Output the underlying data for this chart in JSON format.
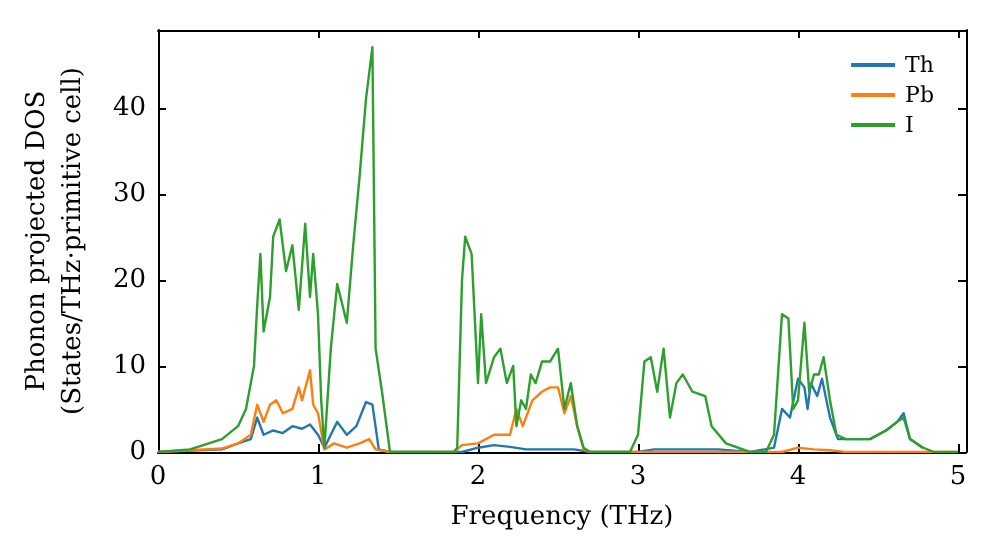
{
  "chart_data": {
    "type": "line",
    "xlabel": "Frequency (THz)",
    "ylabel": "Phonon projected DOS\n(States/THz·primitive cell)",
    "xlim": [
      0,
      5.05
    ],
    "ylim": [
      0,
      49
    ],
    "xticks": [
      0,
      1,
      2,
      3,
      4,
      5
    ],
    "yticks": [
      0,
      10,
      20,
      30,
      40
    ],
    "grid": false,
    "legend": "top right",
    "marker": "none",
    "line_style": "solid",
    "series": [
      {
        "name": "Th",
        "color": "#1f77b4",
        "x": [
          0,
          0.4,
          0.5,
          0.58,
          0.62,
          0.66,
          0.72,
          0.78,
          0.84,
          0.9,
          0.95,
          1.0,
          1.04,
          1.08,
          1.12,
          1.18,
          1.24,
          1.3,
          1.34,
          1.38,
          1.45,
          1.9,
          2.0,
          2.1,
          2.2,
          2.3,
          2.6,
          2.7,
          3.0,
          3.1,
          3.5,
          3.7,
          3.85,
          3.9,
          3.95,
          4.0,
          4.04,
          4.06,
          4.08,
          4.12,
          4.15,
          4.2,
          4.25,
          4.3,
          4.45,
          4.55,
          4.62,
          4.66,
          4.7,
          4.78
        ],
        "values": [
          0,
          0.3,
          1,
          1.5,
          4,
          2,
          2.5,
          2.2,
          3,
          2.7,
          3.2,
          2,
          0.5,
          2,
          3.5,
          2,
          3,
          5.8,
          5.5,
          0.3,
          0,
          0,
          0.5,
          0.8,
          0.6,
          0.3,
          0.3,
          0,
          0,
          0.3,
          0.3,
          0,
          0.5,
          5,
          4,
          8.5,
          7.5,
          5,
          8,
          6.5,
          8.5,
          4,
          1.5,
          1.5,
          1.5,
          2.5,
          3.5,
          4.5,
          1.5,
          0.5
        ]
      },
      {
        "name": "Pb",
        "color": "#ff7f0e",
        "x": [
          0,
          0.4,
          0.5,
          0.58,
          0.62,
          0.66,
          0.7,
          0.74,
          0.78,
          0.84,
          0.88,
          0.9,
          0.95,
          0.97,
          1.0,
          1.04,
          1.1,
          1.18,
          1.26,
          1.32,
          1.36,
          1.45,
          1.85,
          1.9,
          2.0,
          2.1,
          2.2,
          2.24,
          2.28,
          2.34,
          2.4,
          2.45,
          2.5,
          2.54,
          2.58,
          2.62,
          2.66,
          2.7,
          3.9,
          4.0,
          4.1,
          4.2,
          4.3,
          5.0
        ],
        "values": [
          0,
          0.4,
          1,
          2,
          5.5,
          3.5,
          5.5,
          6,
          4.5,
          5,
          7.5,
          6,
          9.5,
          5.5,
          4.5,
          0.3,
          1,
          0.5,
          1,
          1.5,
          0.3,
          0,
          0,
          0.8,
          1,
          2,
          2,
          5,
          3,
          6,
          7,
          7.5,
          7.5,
          4.5,
          6.5,
          3,
          0.3,
          0,
          0,
          0.5,
          0.3,
          0.2,
          0,
          0
        ]
      },
      {
        "name": "I",
        "color": "#2ca02c",
        "x": [
          0,
          0.2,
          0.4,
          0.5,
          0.55,
          0.6,
          0.62,
          0.64,
          0.66,
          0.7,
          0.72,
          0.76,
          0.8,
          0.84,
          0.88,
          0.92,
          0.95,
          0.97,
          1.0,
          1.02,
          1.04,
          1.08,
          1.12,
          1.18,
          1.22,
          1.26,
          1.3,
          1.34,
          1.36,
          1.4,
          1.45,
          1.85,
          1.87,
          1.9,
          1.92,
          1.96,
          2.0,
          2.02,
          2.05,
          2.1,
          2.14,
          2.18,
          2.22,
          2.24,
          2.27,
          2.3,
          2.33,
          2.36,
          2.4,
          2.45,
          2.5,
          2.54,
          2.58,
          2.62,
          2.66,
          2.7,
          2.95,
          3.0,
          3.04,
          3.08,
          3.12,
          3.16,
          3.2,
          3.24,
          3.28,
          3.34,
          3.42,
          3.46,
          3.55,
          3.7,
          3.8,
          3.85,
          3.9,
          3.94,
          3.97,
          4.0,
          4.04,
          4.07,
          4.1,
          4.13,
          4.16,
          4.2,
          4.24,
          4.3,
          4.35,
          4.45,
          4.55,
          4.62,
          4.66,
          4.7,
          4.78,
          4.85,
          5.0
        ],
        "values": [
          0,
          0.3,
          1.5,
          3,
          5,
          10,
          17,
          23,
          14,
          18,
          25,
          27,
          21,
          24,
          16.5,
          26.5,
          18,
          23,
          16,
          6,
          0.5,
          12,
          19.5,
          15,
          24,
          32,
          41,
          47,
          12,
          7,
          0,
          0,
          0.5,
          20,
          25,
          23,
          8,
          16,
          8,
          11,
          12,
          8,
          10,
          3,
          6,
          5,
          9,
          8,
          10.5,
          10.5,
          12,
          5,
          8,
          3,
          0.5,
          0,
          0,
          2,
          10.5,
          11,
          7,
          12,
          4,
          8,
          9,
          7,
          6.5,
          3,
          1,
          0,
          0,
          2,
          16,
          15.5,
          5,
          6,
          15,
          7,
          9,
          9,
          11,
          6,
          2,
          1.5,
          1.5,
          1.5,
          2.5,
          3.5,
          4,
          1.5,
          0.5,
          0,
          0
        ]
      }
    ]
  }
}
